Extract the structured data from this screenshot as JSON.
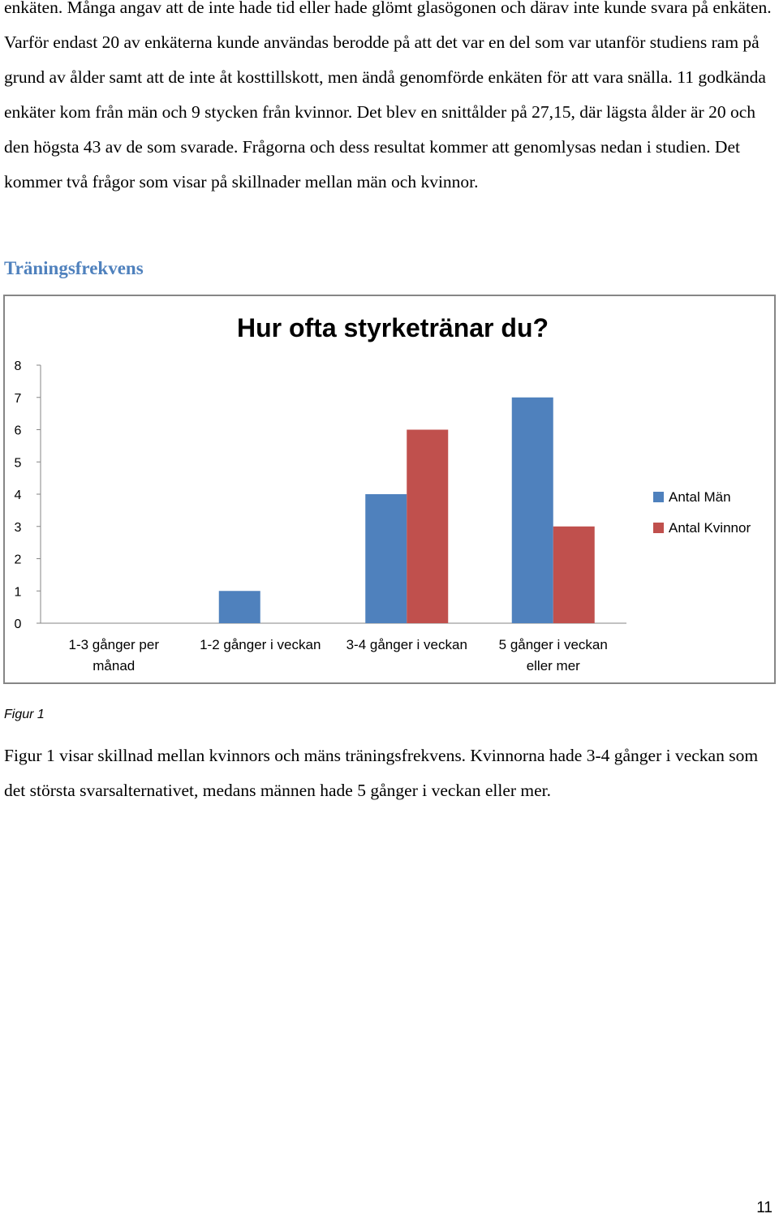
{
  "document": {
    "intro_paragraph": "enkäten. Många angav att de inte hade tid eller hade glömt glasögonen och därav inte kunde svara på enkäten. Varför endast 20 av enkäterna kunde användas berodde på att det var en del som var utanför studiens ram på grund av ålder samt att de inte åt kosttillskott, men ändå genomförde enkäten för att vara snälla. 11 godkända enkäter kom från män och 9 stycken från kvinnor. Det blev en snittålder på 27,15, där lägsta ålder är 20 och den högsta 43 av de som svarade. Frågorna och dess resultat kommer att genomlysas nedan i studien. Det kommer två frågor som visar på skillnader mellan män och kvinnor.",
    "section_heading": "Träningsfrekvens",
    "figure_caption": "Figur 1",
    "figure_paragraph": "Figur 1 visar skillnad mellan kvinnors och mäns träningsfrekvens. Kvinnorna hade 3-4 gånger i veckan som det största svarsalternativet, medans männen hade 5 gånger i veckan eller mer.",
    "page_number": "11"
  },
  "chart_data": {
    "type": "bar",
    "title": "Hur ofta styrketränar du?",
    "categories": [
      [
        "1-3 gånger per",
        "månad"
      ],
      [
        "1-2 gånger i veckan"
      ],
      [
        "3-4 gånger i veckan"
      ],
      [
        "5 gånger i veckan",
        "eller mer"
      ]
    ],
    "series": [
      {
        "name": "Antal Män",
        "color": "#4f81bd",
        "values": [
          0,
          1,
          4,
          7
        ]
      },
      {
        "name": "Antal Kvinnor",
        "color": "#c0504d",
        "values": [
          0,
          0,
          6,
          3
        ]
      }
    ],
    "ylim": [
      0,
      8
    ],
    "yticks": [
      "0",
      "1",
      "2",
      "3",
      "4",
      "5",
      "6",
      "7",
      "8"
    ],
    "xlabel": "",
    "ylabel": "",
    "grid": false,
    "legend_position": "right"
  }
}
